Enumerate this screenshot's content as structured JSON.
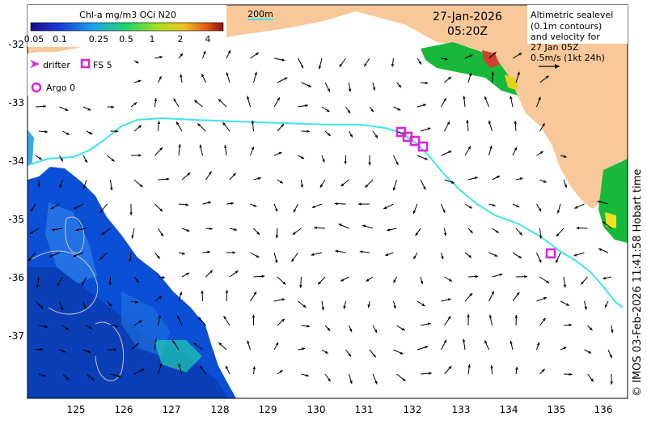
{
  "colorbar": {
    "title": "Chl-a mg/m3 OCi N20",
    "ticks": [
      "0.05",
      "0.1",
      "0.25",
      "0.5",
      "1",
      "2",
      "4"
    ]
  },
  "scale": {
    "label": "200m"
  },
  "datetime": {
    "date": "27-Jan-2026",
    "time": "05:20Z"
  },
  "info": {
    "lines": [
      "Altimetric sealevel",
      "(0.1m contours)",
      "and velocity for",
      "27 Jan 05Z",
      "0.5m/s (1kt 24h)"
    ]
  },
  "legend": {
    "drifter": "drifter",
    "fs": "FS 5",
    "argo": "Argo 0"
  },
  "axes": {
    "x_ticks": [
      "125",
      "126",
      "127",
      "128",
      "129",
      "130",
      "131",
      "132",
      "133",
      "134",
      "135",
      "136"
    ],
    "y_ticks": [
      "-32",
      "-33",
      "-34",
      "-35",
      "-36",
      "-37"
    ]
  },
  "credit": "© IMOS 03-Feb-2026 11:41:58 Hobart time",
  "colors": {
    "land": "#f9c89a",
    "contour_200m": "#3fe4ea",
    "marker": "#e020e0",
    "chl_low": "#0b4fd6",
    "chl_high": "#12c81e"
  }
}
